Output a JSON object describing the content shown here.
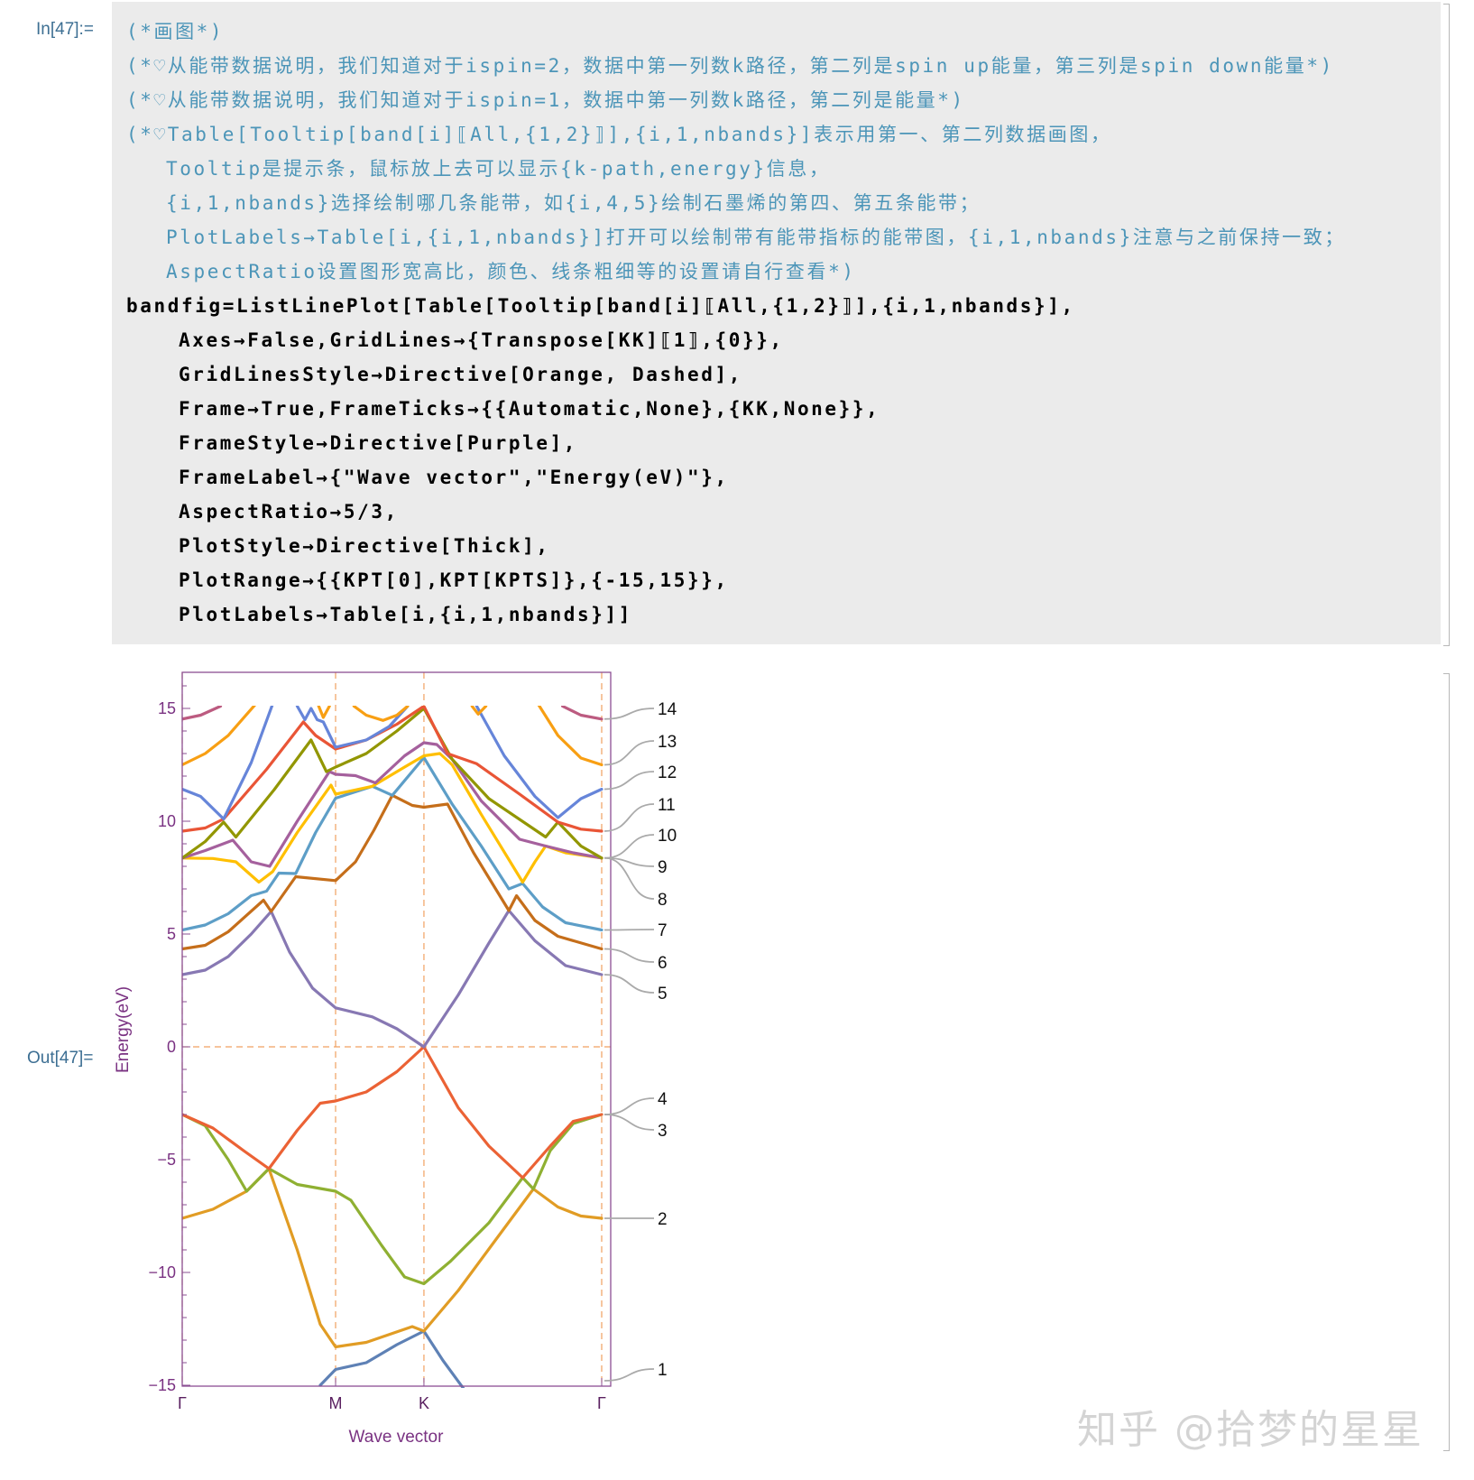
{
  "input_label": "In[47]:=",
  "output_label": "Out[47]=",
  "code_lines": [
    {
      "type": "comment",
      "indent": 0,
      "text": "(*画图*)"
    },
    {
      "type": "comment",
      "indent": 0,
      "text": "(*♡从能带数据说明，我们知道对于ispin=2，数据中第一列数k路径，第二列是spin up能量，第三列是spin down能量*)"
    },
    {
      "type": "comment",
      "indent": 0,
      "text": "(*♡从能带数据说明，我们知道对于ispin=1，数据中第一列数k路径，第二列是能量*)"
    },
    {
      "type": "comment",
      "indent": 0,
      "text": "(*♡Table[Tooltip[band[i]⟦All,{1,2}⟧],{i,1,nbands}]表示用第一、第二列数据画图，"
    },
    {
      "type": "comment",
      "indent": 1,
      "text": "Tooltip是提示条，鼠标放上去可以显示{k-path,energy}信息，"
    },
    {
      "type": "comment",
      "indent": 1,
      "text": "{i,1,nbands}选择绘制哪几条能带，如{i,4,5}绘制石墨烯的第四、第五条能带；"
    },
    {
      "type": "comment",
      "indent": 1,
      "text": "PlotLabels→Table[i,{i,1,nbands}]打开可以绘制带有能带指标的能带图，{i,1,nbands}注意与之前保持一致；"
    },
    {
      "type": "comment",
      "indent": 1,
      "text": "AspectRatio设置图形宽高比，颜色、线条粗细等的设置请自行查看*)"
    },
    {
      "type": "code",
      "indent": 0,
      "text": "bandfig=ListLinePlot[Table[Tooltip[band[i]⟦All,{1,2}⟧],{i,1,nbands}],"
    },
    {
      "type": "code",
      "indent": 2,
      "text": "Axes→False,GridLines→{Transpose[KK]⟦1⟧,{0}},"
    },
    {
      "type": "code",
      "indent": 2,
      "text": "GridLinesStyle→Directive[Orange, Dashed],"
    },
    {
      "type": "code",
      "indent": 2,
      "text": "Frame→True,FrameTicks→{{Automatic,None},{KK,None}},"
    },
    {
      "type": "code",
      "indent": 2,
      "text": "FrameStyle→Directive[Purple],"
    },
    {
      "type": "code",
      "indent": 2,
      "text": "FrameLabel→{\"Wave vector\",\"Energy(eV)\"},"
    },
    {
      "type": "code",
      "indent": 2,
      "text": "AspectRatio→5/3,"
    },
    {
      "type": "code",
      "indent": 2,
      "text": "PlotStyle→Directive[Thick],"
    },
    {
      "type": "code",
      "indent": 2,
      "text": "PlotRange→{{KPT[0],KPT[KPTS]},{-15,15}},"
    },
    {
      "type": "code",
      "indent": 2,
      "text": "PlotLabels→Table[i,{i,1,nbands}]]"
    }
  ],
  "watermark": "知乎 @拾梦的星星",
  "chart_data": {
    "type": "line",
    "xlabel": "Wave vector",
    "ylabel": "Energy(eV)",
    "ylim": [
      -15,
      15
    ],
    "yticks": [
      -15,
      -10,
      -5,
      0,
      5,
      10,
      15
    ],
    "ytick_labels": [
      "−15",
      "−10",
      "−5",
      "0",
      "5",
      "10",
      "15"
    ],
    "xticks": [
      0,
      1,
      1.576,
      2.735
    ],
    "xtick_labels": [
      "Γ",
      "M",
      "K",
      "Γ"
    ],
    "xlim": [
      0,
      2.735
    ],
    "gridlines": {
      "x": [
        0,
        1,
        1.576,
        2.735
      ],
      "y": [
        0
      ],
      "color": "#F0A060",
      "style": "dashed"
    },
    "frame_color": "#8B4F93",
    "series": [
      {
        "name": "1",
        "color": "#5E81B5",
        "points": [
          [
            0.9,
            -15
          ],
          [
            1.0,
            -14.3
          ],
          [
            1.2,
            -14
          ],
          [
            1.4,
            -13.2
          ],
          [
            1.576,
            -12.6
          ],
          [
            1.7,
            -13.9
          ],
          [
            1.84,
            -15.2
          ]
        ]
      },
      {
        "name": "2",
        "color": "#E19C24",
        "points": [
          [
            0,
            -7.6
          ],
          [
            0.2,
            -7.2
          ],
          [
            0.42,
            -6.4
          ],
          [
            0.565,
            -5.4
          ],
          [
            0.75,
            -9
          ],
          [
            0.9,
            -12.3
          ],
          [
            1.0,
            -13.3
          ],
          [
            1.2,
            -13.1
          ],
          [
            1.5,
            -12.4
          ],
          [
            1.576,
            -12.6
          ],
          [
            1.8,
            -10.8
          ],
          [
            2.05,
            -8.5
          ],
          [
            2.29,
            -6.3
          ],
          [
            2.45,
            -7.1
          ],
          [
            2.6,
            -7.5
          ],
          [
            2.735,
            -7.6
          ]
        ]
      },
      {
        "name": "3",
        "color": "#8FB032",
        "points": [
          [
            0,
            -3
          ],
          [
            0.15,
            -3.5
          ],
          [
            0.3,
            -5
          ],
          [
            0.42,
            -6.4
          ],
          [
            0.565,
            -5.4
          ],
          [
            0.75,
            -6.1
          ],
          [
            1.0,
            -6.4
          ],
          [
            1.1,
            -6.8
          ],
          [
            1.3,
            -8.8
          ],
          [
            1.45,
            -10.2
          ],
          [
            1.576,
            -10.5
          ],
          [
            1.75,
            -9.5
          ],
          [
            2.0,
            -7.8
          ],
          [
            2.22,
            -5.8
          ],
          [
            2.29,
            -6.3
          ],
          [
            2.4,
            -4.6
          ],
          [
            2.55,
            -3.4
          ],
          [
            2.735,
            -3
          ]
        ]
      },
      {
        "name": "4",
        "color": "#EB6235",
        "points": [
          [
            0,
            -3
          ],
          [
            0.2,
            -3.6
          ],
          [
            0.4,
            -4.6
          ],
          [
            0.565,
            -5.4
          ],
          [
            0.75,
            -3.7
          ],
          [
            0.9,
            -2.5
          ],
          [
            1.0,
            -2.4
          ],
          [
            1.2,
            -2
          ],
          [
            1.4,
            -1.1
          ],
          [
            1.576,
            0
          ],
          [
            1.8,
            -2.7
          ],
          [
            2.0,
            -4.4
          ],
          [
            2.22,
            -5.8
          ],
          [
            2.4,
            -4.4
          ],
          [
            2.55,
            -3.3
          ],
          [
            2.735,
            -3
          ]
        ]
      },
      {
        "name": "5",
        "color": "#8778B3",
        "points": [
          [
            0,
            3.2
          ],
          [
            0.15,
            3.4
          ],
          [
            0.3,
            4
          ],
          [
            0.45,
            5
          ],
          [
            0.58,
            6.0
          ],
          [
            0.7,
            4.2
          ],
          [
            0.85,
            2.6
          ],
          [
            1.0,
            1.73
          ],
          [
            1.24,
            1.33
          ],
          [
            1.4,
            0.8
          ],
          [
            1.576,
            0
          ],
          [
            1.8,
            2.3
          ],
          [
            2.0,
            4.6
          ],
          [
            2.13,
            6.04
          ],
          [
            2.3,
            4.7
          ],
          [
            2.5,
            3.6
          ],
          [
            2.735,
            3.2
          ]
        ]
      },
      {
        "name": "6",
        "color": "#C56E1A",
        "points": [
          [
            0,
            4.34
          ],
          [
            0.15,
            4.5
          ],
          [
            0.3,
            5.1
          ],
          [
            0.53,
            6.5
          ],
          [
            0.58,
            6.0
          ],
          [
            0.74,
            7.54
          ],
          [
            1.0,
            7.37
          ],
          [
            1.13,
            8.2
          ],
          [
            1.25,
            9.6
          ],
          [
            1.37,
            11.15
          ],
          [
            1.5,
            10.7
          ],
          [
            1.576,
            10.62
          ],
          [
            1.73,
            10.76
          ],
          [
            1.9,
            8.6
          ],
          [
            2.13,
            6.04
          ],
          [
            2.18,
            6.7
          ],
          [
            2.3,
            5.6
          ],
          [
            2.45,
            4.9
          ],
          [
            2.735,
            4.34
          ]
        ]
      },
      {
        "name": "7",
        "color": "#5D9EC7",
        "points": [
          [
            0,
            5.18
          ],
          [
            0.15,
            5.4
          ],
          [
            0.3,
            5.9
          ],
          [
            0.45,
            6.7
          ],
          [
            0.55,
            6.9
          ],
          [
            0.63,
            7.7
          ],
          [
            0.74,
            7.68
          ],
          [
            0.87,
            9.5
          ],
          [
            1.0,
            11.02
          ],
          [
            1.24,
            11.55
          ],
          [
            1.37,
            11.15
          ],
          [
            1.576,
            12.82
          ],
          [
            1.76,
            10.76
          ],
          [
            1.95,
            8.9
          ],
          [
            2.13,
            7.0
          ],
          [
            2.22,
            7.24
          ],
          [
            2.35,
            6.2
          ],
          [
            2.5,
            5.5
          ],
          [
            2.735,
            5.18
          ]
        ]
      },
      {
        "name": "8",
        "color": "#FFBF00",
        "points": [
          [
            0,
            8.37
          ],
          [
            0.2,
            8.35
          ],
          [
            0.35,
            8.2
          ],
          [
            0.5,
            7.3
          ],
          [
            0.59,
            7.77
          ],
          [
            0.75,
            9.5
          ],
          [
            0.97,
            11.6
          ],
          [
            1.0,
            11.2
          ],
          [
            1.24,
            11.55
          ],
          [
            1.45,
            12.4
          ],
          [
            1.576,
            12.9
          ],
          [
            1.68,
            13.0
          ],
          [
            1.76,
            12.5
          ],
          [
            1.95,
            10.3
          ],
          [
            2.22,
            7.3
          ],
          [
            2.3,
            8.2
          ],
          [
            2.37,
            8.9
          ],
          [
            2.5,
            8.6
          ],
          [
            2.735,
            8.37
          ]
        ]
      },
      {
        "name": "9",
        "color": "#A5609D",
        "points": [
          [
            0,
            8.37
          ],
          [
            0.15,
            8.7
          ],
          [
            0.33,
            9.16
          ],
          [
            0.45,
            8.2
          ],
          [
            0.57,
            8.0
          ],
          [
            0.75,
            10
          ],
          [
            0.96,
            12.2
          ],
          [
            1.0,
            12.08
          ],
          [
            1.13,
            12.02
          ],
          [
            1.26,
            11.7
          ],
          [
            1.45,
            12.9
          ],
          [
            1.576,
            13.48
          ],
          [
            1.66,
            13.4
          ],
          [
            1.76,
            12.75
          ],
          [
            1.95,
            10.9
          ],
          [
            2.2,
            9.2
          ],
          [
            2.37,
            8.9
          ],
          [
            2.55,
            8.6
          ],
          [
            2.735,
            8.37
          ]
        ]
      },
      {
        "name": "10",
        "color": "#929600",
        "points": [
          [
            0,
            8.37
          ],
          [
            0.15,
            9.1
          ],
          [
            0.27,
            9.96
          ],
          [
            0.35,
            9.3
          ],
          [
            0.6,
            11.4
          ],
          [
            0.84,
            13.6
          ],
          [
            0.94,
            12.2
          ],
          [
            1.0,
            12.4
          ],
          [
            1.2,
            13.0
          ],
          [
            1.4,
            14.0
          ],
          [
            1.576,
            15.0
          ],
          [
            1.76,
            12.75
          ],
          [
            2.0,
            11.0
          ],
          [
            2.37,
            9.3
          ],
          [
            2.45,
            9.96
          ],
          [
            2.6,
            8.9
          ],
          [
            2.735,
            8.37
          ]
        ]
      },
      {
        "name": "11",
        "color": "#E95536",
        "points": [
          [
            0,
            9.56
          ],
          [
            0.15,
            9.7
          ],
          [
            0.27,
            10.1
          ],
          [
            0.55,
            12.3
          ],
          [
            0.79,
            14.4
          ],
          [
            0.87,
            13.8
          ],
          [
            1.0,
            13.2
          ],
          [
            1.2,
            13.6
          ],
          [
            1.4,
            14.3
          ],
          [
            1.576,
            15.1
          ],
          [
            1.73,
            13.0
          ],
          [
            1.92,
            12.55
          ],
          [
            2.2,
            11.2
          ],
          [
            2.45,
            9.96
          ],
          [
            2.6,
            9.65
          ],
          [
            2.735,
            9.56
          ]
        ]
      },
      {
        "name": "12",
        "color": "#6685D9",
        "points": [
          [
            0,
            11.42
          ],
          [
            0.12,
            11.1
          ],
          [
            0.27,
            10.1
          ],
          [
            0.45,
            12.6
          ],
          [
            0.59,
            15.2
          ]
        ]
      },
      {
        "name": "12",
        "color": "#6685D9",
        "points": [
          [
            0.75,
            15.1
          ],
          [
            0.8,
            14.5
          ],
          [
            0.84,
            15.0
          ],
          [
            0.88,
            14.5
          ],
          [
            0.92,
            14.4
          ],
          [
            1.0,
            13.28
          ],
          [
            1.2,
            13.6
          ],
          [
            1.35,
            14.2
          ],
          [
            1.47,
            15.1
          ]
        ]
      },
      {
        "name": "12",
        "color": "#6685D9",
        "points": [
          [
            1.92,
            15.1
          ],
          [
            2.1,
            12.9
          ],
          [
            2.3,
            11.1
          ],
          [
            2.45,
            10.16
          ],
          [
            2.6,
            11.0
          ],
          [
            2.735,
            11.42
          ]
        ]
      },
      {
        "name": "13",
        "color": "#F89F13",
        "points": [
          [
            0,
            12.5
          ],
          [
            0.15,
            13.0
          ],
          [
            0.3,
            13.8
          ],
          [
            0.48,
            15.2
          ]
        ]
      },
      {
        "name": "13",
        "color": "#F89F13",
        "points": [
          [
            0.89,
            15.1
          ],
          [
            0.92,
            14.6
          ],
          [
            0.96,
            15.1
          ]
        ]
      },
      {
        "name": "13",
        "color": "#F89F13",
        "points": [
          [
            1.12,
            15.1
          ],
          [
            1.2,
            14.7
          ],
          [
            1.31,
            14.47
          ],
          [
            1.4,
            14.7
          ],
          [
            1.47,
            15.1
          ]
        ]
      },
      {
        "name": "13",
        "color": "#F89F13",
        "points": [
          [
            1.89,
            15.1
          ],
          [
            1.93,
            14.75
          ],
          [
            1.98,
            15.1
          ]
        ]
      },
      {
        "name": "13",
        "color": "#F89F13",
        "points": [
          [
            2.32,
            15.2
          ],
          [
            2.45,
            13.8
          ],
          [
            2.6,
            12.8
          ],
          [
            2.735,
            12.5
          ]
        ]
      },
      {
        "name": "14",
        "color": "#BC5B80",
        "points": [
          [
            0,
            14.53
          ],
          [
            0.12,
            14.7
          ],
          [
            0.25,
            15.1
          ]
        ]
      },
      {
        "name": "14",
        "color": "#BC5B80",
        "points": [
          [
            2.48,
            15.1
          ],
          [
            2.6,
            14.7
          ],
          [
            2.735,
            14.53
          ]
        ]
      }
    ],
    "plot_labels": [
      {
        "text": "1",
        "at_energy": -14.8
      },
      {
        "text": "2",
        "at_energy": -7.6
      },
      {
        "text": "3",
        "at_energy": -3
      },
      {
        "text": "4",
        "at_energy": -3
      },
      {
        "text": "5",
        "at_energy": 3.2
      },
      {
        "text": "6",
        "at_energy": 4.34
      },
      {
        "text": "7",
        "at_energy": 5.18
      },
      {
        "text": "8",
        "at_energy": 8.37
      },
      {
        "text": "9",
        "at_energy": 8.37
      },
      {
        "text": "10",
        "at_energy": 8.37
      },
      {
        "text": "11",
        "at_energy": 9.56
      },
      {
        "text": "12",
        "at_energy": 11.42
      },
      {
        "text": "13",
        "at_energy": 12.5
      },
      {
        "text": "14",
        "at_energy": 14.53
      }
    ]
  }
}
